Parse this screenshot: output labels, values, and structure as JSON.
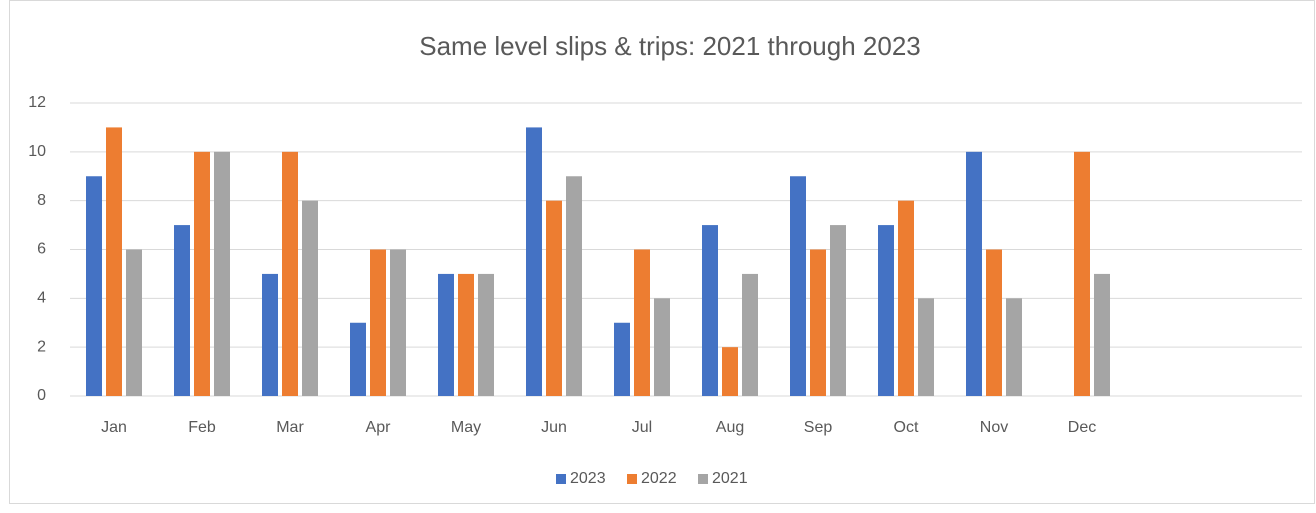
{
  "chart_data": {
    "type": "bar",
    "title": "Same level slips & trips: 2021 through 2023",
    "categories": [
      "Jan",
      "Feb",
      "Mar",
      "Apr",
      "May",
      "Jun",
      "Jul",
      "Aug",
      "Sep",
      "Oct",
      "Nov",
      "Dec",
      null,
      null
    ],
    "series": [
      {
        "name": "2023",
        "color": "#4472c4",
        "values": [
          9,
          7,
          5,
          3,
          5,
          11,
          3,
          7,
          9,
          7,
          10,
          null,
          null,
          null
        ]
      },
      {
        "name": "2022",
        "color": "#ed7d31",
        "values": [
          11,
          10,
          10,
          6,
          5,
          8,
          6,
          2,
          6,
          8,
          6,
          10,
          null,
          null
        ]
      },
      {
        "name": "2021",
        "color": "#a5a5a5",
        "values": [
          6,
          10,
          8,
          6,
          5,
          9,
          4,
          5,
          7,
          4,
          4,
          5,
          null,
          null
        ]
      }
    ],
    "ylim": [
      0,
      12
    ],
    "yticks": [
      0,
      2,
      4,
      6,
      8,
      10,
      12
    ],
    "grid": true,
    "legend": "bottom"
  }
}
